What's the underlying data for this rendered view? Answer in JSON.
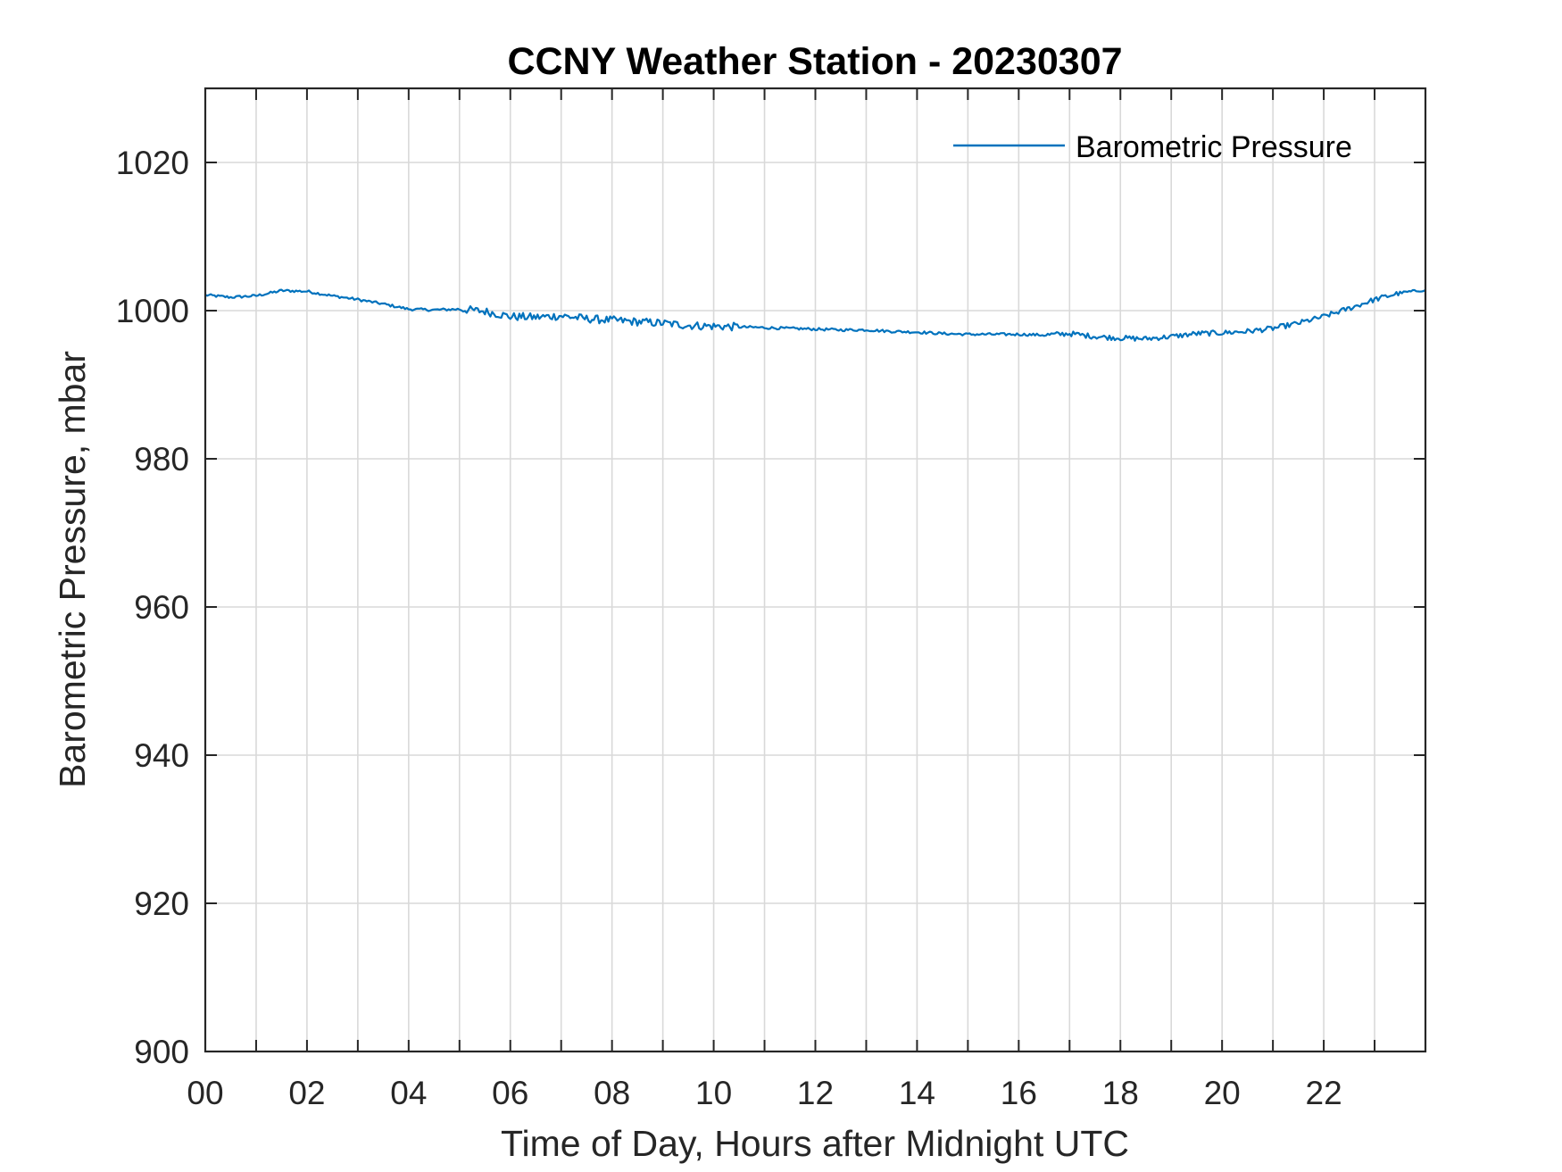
{
  "chart_data": {
    "type": "line",
    "title": "CCNY Weather Station - 20230307",
    "xlabel": "Time of Day, Hours after Midnight UTC",
    "ylabel": "Barometric Pressure, mbar",
    "xlim": [
      0,
      24
    ],
    "ylim": [
      900,
      1030
    ],
    "xticks": [
      0,
      2,
      4,
      6,
      8,
      10,
      12,
      14,
      16,
      18,
      20,
      22
    ],
    "xtick_labels": [
      "00",
      "02",
      "04",
      "06",
      "08",
      "10",
      "12",
      "14",
      "16",
      "18",
      "20",
      "22"
    ],
    "xgrid": [
      0,
      1,
      2,
      3,
      4,
      5,
      6,
      7,
      8,
      9,
      10,
      11,
      12,
      13,
      14,
      15,
      16,
      17,
      18,
      19,
      20,
      21,
      22,
      23,
      24
    ],
    "yticks": [
      900,
      920,
      940,
      960,
      980,
      1000,
      1020
    ],
    "ytick_labels": [
      "900",
      "920",
      "940",
      "960",
      "980",
      "1000",
      "1020"
    ],
    "grid": true,
    "legend_position": "top-right",
    "series": [
      {
        "name": "Barometric Pressure",
        "color": "#0072BD",
        "x": [
          0,
          0.5,
          1,
          1.5,
          2,
          2.5,
          3,
          3.5,
          4,
          4.5,
          5,
          5.5,
          6,
          6.5,
          7,
          7.5,
          8,
          8.5,
          9,
          9.5,
          10,
          10.5,
          11,
          11.5,
          12,
          12.5,
          13,
          13.5,
          14,
          14.5,
          15,
          15.5,
          16,
          16.5,
          17,
          17.5,
          18,
          18.5,
          19,
          19.5,
          20,
          20.5,
          21,
          21.5,
          22,
          22.5,
          23,
          23.5,
          24
        ],
        "y": [
          1002.1,
          1001.8,
          1002.0,
          1002.7,
          1002.6,
          1002.0,
          1001.5,
          1000.9,
          1000.2,
          1000.1,
          1000.2,
          999.9,
          999.2,
          999.1,
          999.3,
          998.9,
          998.7,
          998.5,
          998.3,
          998.0,
          997.9,
          997.8,
          997.7,
          997.6,
          997.5,
          997.4,
          997.4,
          997.2,
          997.1,
          996.9,
          996.8,
          996.8,
          996.8,
          996.7,
          996.9,
          996.5,
          996.3,
          996.2,
          996.5,
          996.9,
          997.0,
          997.2,
          997.6,
          998.3,
          999.2,
          1000.3,
          1001.5,
          1002.4,
          1002.8
        ]
      }
    ]
  }
}
